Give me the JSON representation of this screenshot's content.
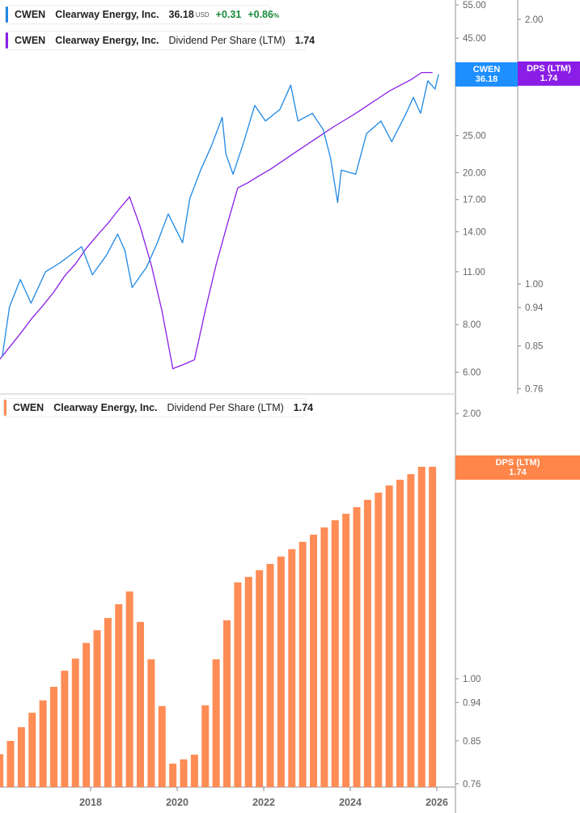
{
  "colors": {
    "price": "#1e88e5",
    "dps_line": "#8a1ee6",
    "dps_bar": "#ff8c55",
    "axis": "#b5b5b5",
    "positive": "#1a8a3a"
  },
  "legend_price": {
    "ticker": "CWEN",
    "company": "Clearway Energy, Inc.",
    "price": "36.18",
    "currency": "USD",
    "change": "+0.31",
    "change_pct": "+0.86",
    "pct_sign": "%"
  },
  "legend_dps_top": {
    "ticker": "CWEN",
    "company": "Clearway Energy, Inc.",
    "metric": "Dividend Per Share (LTM)",
    "value": "1.74"
  },
  "legend_dps_bottom": {
    "ticker": "CWEN",
    "company": "Clearway Energy, Inc.",
    "metric": "Dividend Per Share (LTM)",
    "value": "1.74"
  },
  "tags": {
    "price": {
      "label": "CWEN",
      "value": "36.18"
    },
    "dps_top": {
      "label": "DPS (LTM)",
      "value": "1.74"
    },
    "dps_bottom": {
      "label": "DPS (LTM)",
      "value": "1.74"
    }
  },
  "chart_data": [
    {
      "type": "line",
      "panel": "top",
      "scale": "log",
      "x_ticks": [
        "2018",
        "2020",
        "2022",
        "2024",
        "2026"
      ],
      "y_ticks_price": [
        "55.00",
        "45.00",
        "25.00",
        "20.00",
        "17.00",
        "14.00",
        "11.00",
        "8.00",
        "6.00"
      ],
      "y_ticks_dps": [
        "2.00",
        "1.00",
        "0.94",
        "0.85",
        "0.76"
      ],
      "series": [
        {
          "name": "CWEN",
          "axis": "price",
          "points": [
            [
              "2015-12",
              6.6
            ],
            [
              "2016-02",
              8.9
            ],
            [
              "2016-05",
              10.5
            ],
            [
              "2016-08",
              9.1
            ],
            [
              "2016-12",
              11.0
            ],
            [
              "2017-04",
              11.6
            ],
            [
              "2017-10",
              12.8
            ],
            [
              "2018-01",
              10.8
            ],
            [
              "2018-05",
              12.2
            ],
            [
              "2018-08",
              13.8
            ],
            [
              "2018-10",
              12.5
            ],
            [
              "2018-12",
              10.0
            ],
            [
              "2019-04",
              11.3
            ],
            [
              "2019-07",
              13.1
            ],
            [
              "2019-10",
              15.6
            ],
            [
              "2020-02",
              13.1
            ],
            [
              "2020-04",
              17.1
            ],
            [
              "2020-07",
              20.3
            ],
            [
              "2020-10",
              23.5
            ],
            [
              "2021-01",
              27.9
            ],
            [
              "2021-02",
              22.4
            ],
            [
              "2021-04",
              19.8
            ],
            [
              "2021-07",
              24.1
            ],
            [
              "2021-10",
              30.0
            ],
            [
              "2022-01",
              27.3
            ],
            [
              "2022-05",
              29.3
            ],
            [
              "2022-08",
              33.9
            ],
            [
              "2022-10",
              27.3
            ],
            [
              "2023-02",
              28.6
            ],
            [
              "2023-05",
              25.9
            ],
            [
              "2023-07",
              21.9
            ],
            [
              "2023-09",
              16.7
            ],
            [
              "2023-10",
              20.3
            ],
            [
              "2024-02",
              19.8
            ],
            [
              "2024-05",
              25.3
            ],
            [
              "2024-09",
              27.3
            ],
            [
              "2024-12",
              24.1
            ],
            [
              "2025-04",
              28.6
            ],
            [
              "2025-06",
              31.5
            ],
            [
              "2025-08",
              28.6
            ],
            [
              "2025-10",
              34.8
            ],
            [
              "2025-12",
              33.1
            ],
            [
              "2026-01",
              36.18
            ]
          ]
        },
        {
          "name": "DPS (LTM)",
          "axis": "dps",
          "uses": "bars"
        }
      ]
    },
    {
      "type": "bar",
      "panel": "bottom",
      "scale": "log",
      "y_ticks": [
        "2.00",
        "1.00",
        "0.94",
        "0.85",
        "0.76"
      ],
      "x_ticks": [
        "2018",
        "2020",
        "2022",
        "2024",
        "2026"
      ],
      "categories": [
        "2015-Q4",
        "2016-Q1",
        "2016-Q2",
        "2016-Q3",
        "2016-Q4",
        "2017-Q1",
        "2017-Q2",
        "2017-Q3",
        "2017-Q4",
        "2018-Q1",
        "2018-Q2",
        "2018-Q3",
        "2018-Q4",
        "2019-Q1",
        "2019-Q2",
        "2019-Q3",
        "2019-Q4",
        "2020-Q1",
        "2020-Q2",
        "2020-Q3",
        "2020-Q4",
        "2021-Q1",
        "2021-Q2",
        "2021-Q3",
        "2021-Q4",
        "2022-Q1",
        "2022-Q2",
        "2022-Q3",
        "2022-Q4",
        "2023-Q1",
        "2023-Q2",
        "2023-Q3",
        "2023-Q4",
        "2024-Q1",
        "2024-Q2",
        "2024-Q3",
        "2024-Q4",
        "2025-Q1",
        "2025-Q2",
        "2025-Q3",
        "2025-Q4"
      ],
      "series": [
        {
          "name": "DPS (LTM)",
          "values": [
            0.821,
            0.85,
            0.881,
            0.915,
            0.945,
            0.979,
            1.021,
            1.054,
            1.098,
            1.135,
            1.172,
            1.215,
            1.256,
            1.16,
            1.052,
            0.931,
            0.801,
            0.81,
            0.82,
            0.933,
            1.052,
            1.165,
            1.286,
            1.305,
            1.328,
            1.35,
            1.376,
            1.403,
            1.43,
            1.457,
            1.485,
            1.513,
            1.539,
            1.566,
            1.596,
            1.626,
            1.657,
            1.682,
            1.707,
            1.74,
            1.74
          ]
        }
      ]
    }
  ]
}
